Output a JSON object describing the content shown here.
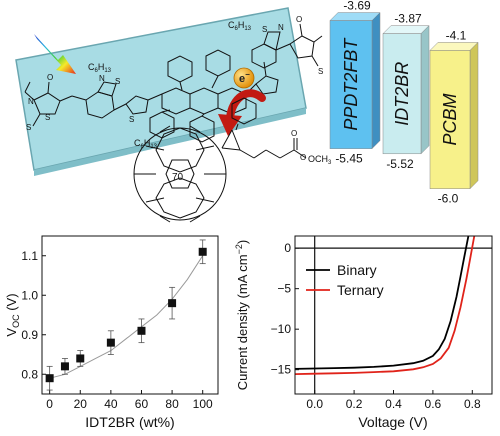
{
  "top_left": {
    "fullerene_label": "70",
    "ester_label": "OCH",
    "ester_sub": "3",
    "electron_label": "e",
    "electron_sup": "−",
    "chain_label_1": "C",
    "chain_sub_1": "6",
    "chain_label_2": "H",
    "chain_sub_2": "13",
    "atom_N": "N",
    "atom_S": "S",
    "atom_O": "O",
    "colors": {
      "glass_fill": "#a8dce4",
      "glass_edge": "#6aa6b0",
      "curved_arrow": "#c21a12",
      "electron": "#f3a40c",
      "light_arrow_start": "#1f3fbf",
      "light_arrow_end": "#e02b14"
    }
  },
  "energy_diagram": {
    "materials": [
      {
        "name": "PPDT2FBT",
        "homo": "-5.45",
        "lumo": "-3.69",
        "front": "#5ec1f0",
        "side": "#3f8fc1",
        "top": "#9fdcf7"
      },
      {
        "name": "IDT2BR",
        "homo": "-5.52",
        "lumo": "-3.87",
        "front": "#c9ecef",
        "side": "#98c5c8",
        "top": "#e3f7f8"
      },
      {
        "name": "PCBM",
        "homo": "-6.0",
        "lumo": "-4.1",
        "front": "#f7f18a",
        "side": "#cfc65a",
        "top": "#fbf8be"
      }
    ]
  },
  "chart_data": [
    {
      "type": "scatter",
      "xlabel": "IDT2BR (wt%)",
      "ylabel_main": "V",
      "ylabel_sub": "OC",
      "ylabel_unit": " (V)",
      "xlim": [
        -5,
        110
      ],
      "ylim": [
        0.75,
        1.15
      ],
      "xticks": [
        0,
        20,
        40,
        60,
        80,
        100
      ],
      "yticks": [
        "0.8",
        "0.9",
        "1.0",
        "1.1"
      ],
      "x": [
        0,
        10,
        20,
        40,
        60,
        80,
        100
      ],
      "y": [
        0.79,
        0.82,
        0.84,
        0.88,
        0.91,
        0.98,
        1.11
      ],
      "err": [
        0.03,
        0.02,
        0.02,
        0.03,
        0.03,
        0.04,
        0.03
      ],
      "fit": {
        "x": [
          0,
          10,
          20,
          30,
          40,
          50,
          60,
          70,
          80,
          90,
          100
        ],
        "y": [
          0.79,
          0.8,
          0.82,
          0.84,
          0.86,
          0.89,
          0.92,
          0.95,
          0.99,
          1.04,
          1.1
        ]
      },
      "marker_color": "#111111",
      "fit_color": "#9a9a9a"
    },
    {
      "type": "line",
      "xlabel": "Voltage (V)",
      "ylabel": "Current density (mA cm",
      "ylabel_sup": "−2",
      "ylabel_end": ")",
      "xlim": [
        -0.1,
        0.9
      ],
      "ylim": [
        -18,
        1.5
      ],
      "xticks": [
        "0.0",
        "0.2",
        "0.4",
        "0.6",
        "0.8"
      ],
      "xtick_values": [
        0.0,
        0.2,
        0.4,
        0.6,
        0.8
      ],
      "yticks": [
        "0",
        "−5",
        "−10",
        "−15"
      ],
      "ytick_values": [
        0,
        -5,
        -10,
        -15
      ],
      "legend_position": "top-right",
      "series": [
        {
          "name": "Binary",
          "color": "#000000",
          "x": [
            -0.1,
            0.0,
            0.1,
            0.2,
            0.3,
            0.4,
            0.5,
            0.55,
            0.6,
            0.63,
            0.66,
            0.69,
            0.72,
            0.74,
            0.76,
            0.78,
            0.8
          ],
          "y": [
            -14.9,
            -14.85,
            -14.8,
            -14.75,
            -14.65,
            -14.5,
            -14.2,
            -13.9,
            -13.3,
            -12.5,
            -11.2,
            -9.0,
            -6.0,
            -3.5,
            -1.0,
            1.5,
            4.0
          ]
        },
        {
          "name": "Ternary",
          "color": "#e0231a",
          "x": [
            -0.1,
            0.0,
            0.1,
            0.2,
            0.3,
            0.4,
            0.5,
            0.55,
            0.6,
            0.64,
            0.68,
            0.71,
            0.74,
            0.77,
            0.79,
            0.81,
            0.83
          ],
          "y": [
            -15.55,
            -15.5,
            -15.45,
            -15.4,
            -15.3,
            -15.2,
            -14.95,
            -14.7,
            -14.3,
            -13.6,
            -12.3,
            -10.2,
            -7.3,
            -3.8,
            -1.2,
            1.5,
            4.0
          ]
        }
      ]
    }
  ]
}
